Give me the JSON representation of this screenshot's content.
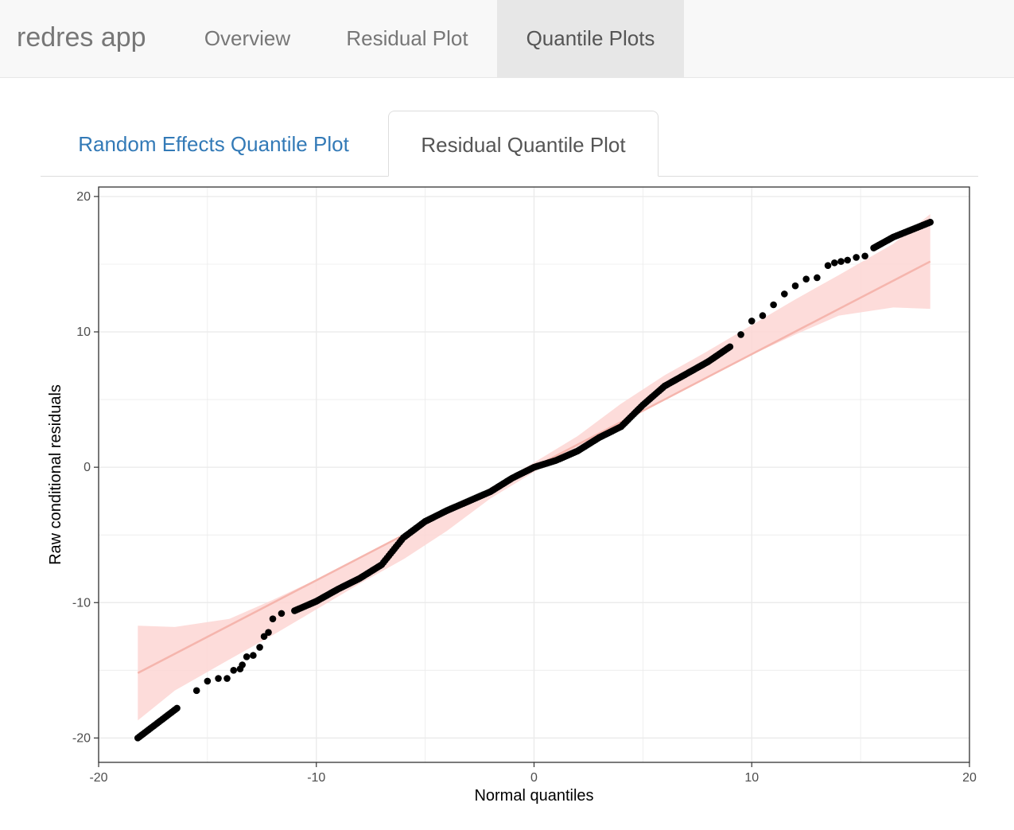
{
  "navbar": {
    "brand": "redres app",
    "items": [
      {
        "label": "Overview",
        "active": false
      },
      {
        "label": "Residual Plot",
        "active": false
      },
      {
        "label": "Quantile Plots",
        "active": true
      }
    ]
  },
  "subtabs": [
    {
      "label": "Random Effects Quantile Plot",
      "active": false
    },
    {
      "label": "Residual Quantile Plot",
      "active": true
    }
  ],
  "colors": {
    "link": "#337ab7",
    "points": "#000000",
    "fit_line": "#f5b5ad",
    "ribbon": "#fdd6d3",
    "grid": "#ebebeb",
    "panel_border": "#333333"
  },
  "chart_data": {
    "type": "scatter",
    "xlabel": "Normal quantiles",
    "ylabel": "Raw conditional residuals",
    "xlim": [
      -20,
      20
    ],
    "ylim": [
      -21.8,
      20.7
    ],
    "x_ticks": [
      -20,
      -10,
      0,
      10,
      20
    ],
    "y_ticks": [
      -20,
      -10,
      0,
      10,
      20
    ],
    "grid": true,
    "x": [
      -18.2,
      -16.4,
      -15.5,
      -15.0,
      -14.5,
      -14.1,
      -13.8,
      -13.5,
      -13.4,
      -13.2,
      -12.9,
      -12.6,
      -12.4,
      -12.2,
      -12.0,
      -11.6,
      -11.0,
      -10.0,
      -9.0,
      -8.0,
      -7.0,
      -6.0,
      -5.0,
      -4.0,
      -3.0,
      -2.0,
      -1.0,
      0.0,
      1.0,
      2.0,
      3.0,
      4.0,
      5.0,
      6.0,
      7.0,
      8.0,
      9.0,
      9.5,
      10.0,
      10.5,
      11.0,
      11.5,
      12.0,
      12.5,
      13.0,
      13.5,
      13.8,
      14.1,
      14.4,
      14.8,
      15.2,
      15.6,
      16.5,
      18.2
    ],
    "y": [
      -20.0,
      -17.8,
      -16.5,
      -15.8,
      -15.6,
      -15.6,
      -15.0,
      -14.9,
      -14.6,
      -14.0,
      -13.9,
      -13.3,
      -12.5,
      -12.2,
      -11.2,
      -10.8,
      -10.6,
      -9.9,
      -9.0,
      -8.2,
      -7.2,
      -5.2,
      -4.0,
      -3.2,
      -2.5,
      -1.8,
      -0.8,
      0.0,
      0.5,
      1.2,
      2.2,
      3.0,
      4.6,
      6.0,
      6.9,
      7.8,
      8.9,
      9.8,
      10.8,
      11.2,
      12.0,
      12.8,
      13.4,
      13.9,
      14.0,
      14.9,
      15.1,
      15.2,
      15.3,
      15.5,
      15.6,
      16.2,
      17.0,
      18.1
    ],
    "fit_line": {
      "x": [
        -18.2,
        18.2
      ],
      "y": [
        -15.2,
        15.2
      ]
    },
    "confidence_band": {
      "x": [
        -18.2,
        -16.5,
        -14,
        -12,
        -10,
        -8,
        -6,
        -4,
        -2,
        0,
        2,
        4,
        6,
        8,
        10,
        12,
        14,
        16.5,
        18.2
      ],
      "lower": [
        -18.7,
        -16.5,
        -14.2,
        -12.4,
        -10.5,
        -8.6,
        -6.8,
        -4.7,
        -2.3,
        -0.35,
        1.5,
        3.3,
        5.1,
        6.7,
        8.3,
        9.8,
        11.2,
        11.8,
        11.7
      ],
      "upper": [
        -11.7,
        -11.8,
        -11.2,
        -9.8,
        -8.3,
        -6.7,
        -5.1,
        -3.3,
        -1.5,
        0.35,
        2.3,
        4.7,
        6.8,
        8.6,
        10.5,
        12.4,
        14.2,
        16.5,
        18.7
      ]
    }
  }
}
